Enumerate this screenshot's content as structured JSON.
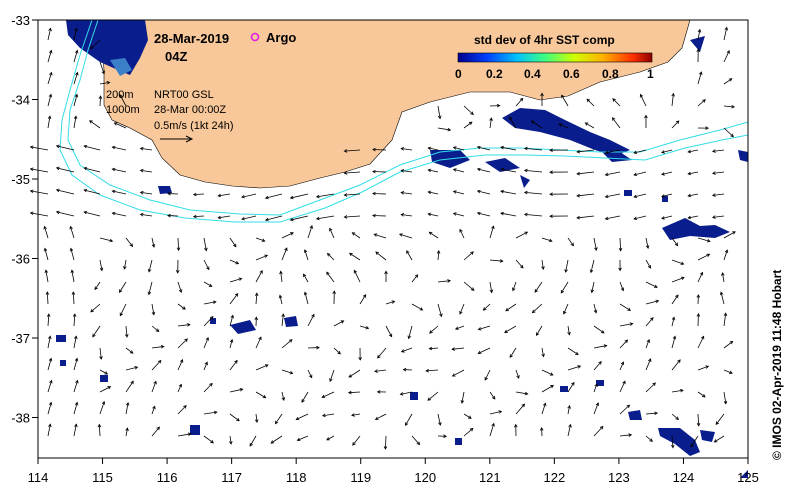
{
  "map": {
    "date": "28-Mar-2019",
    "time": "04Z",
    "argo_label": "Argo",
    "legend_title": "std dev of 4hr SST comp",
    "legend_ticks": [
      "0",
      "0.2",
      "0.4",
      "0.6",
      "0.8",
      "1"
    ],
    "contour_labels": [
      "200m",
      "1000m"
    ],
    "product": "NRT00 GSL",
    "product_time": "28-Mar 00:00Z",
    "scale_label": "0.5m/s (1kt 24h)",
    "credit": "© IMOS 02-Apr-2019 11:48 Hobart",
    "lon_ticks": [
      "114",
      "115",
      "116",
      "117",
      "118",
      "119",
      "120",
      "121",
      "122",
      "123",
      "124",
      "125"
    ],
    "lat_ticks": [
      "-33",
      "-34",
      "-35",
      "-36",
      "-37",
      "-38"
    ],
    "colors": {
      "land": "#f8c89a",
      "contour": "#33dde8",
      "sst_low": "#0a1d8c",
      "argo": "#e020e0",
      "scale_start": "#0000a0",
      "scale_end": "#a00000"
    }
  }
}
